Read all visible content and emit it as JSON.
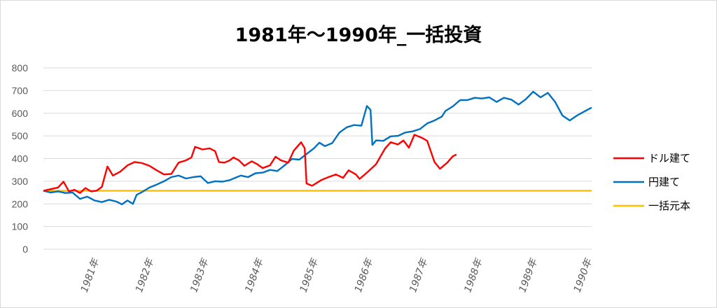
{
  "chart_data": {
    "type": "line",
    "title": "1981年～1990年_一括投資",
    "ylim": [
      0,
      800
    ],
    "y_ticks": [
      "0",
      "100",
      "200",
      "300",
      "400",
      "500",
      "600",
      "700",
      "800"
    ],
    "x": [
      "1981年",
      "1982年",
      "1983年",
      "1984年",
      "1985年",
      "1986年",
      "1987年",
      "1988年",
      "1989年",
      "1990年"
    ],
    "x_start": "1980年",
    "grid": true,
    "legend_position": "right",
    "series": [
      {
        "name": "ドル建て",
        "color": "#ff0000",
        "points": [
          [
            0,
            258
          ],
          [
            0.2,
            265
          ],
          [
            0.4,
            272
          ],
          [
            0.55,
            298
          ],
          [
            0.7,
            255
          ],
          [
            0.85,
            262
          ],
          [
            1.0,
            248
          ],
          [
            1.15,
            270
          ],
          [
            1.3,
            255
          ],
          [
            1.45,
            258
          ],
          [
            1.6,
            275
          ],
          [
            1.75,
            365
          ],
          [
            1.9,
            325
          ],
          [
            2.1,
            342
          ],
          [
            2.3,
            370
          ],
          [
            2.5,
            385
          ],
          [
            2.7,
            380
          ],
          [
            2.9,
            368
          ],
          [
            3.1,
            348
          ],
          [
            3.3,
            330
          ],
          [
            3.5,
            332
          ],
          [
            3.7,
            382
          ],
          [
            3.9,
            392
          ],
          [
            4.05,
            405
          ],
          [
            4.15,
            452
          ],
          [
            4.35,
            440
          ],
          [
            4.55,
            445
          ],
          [
            4.7,
            432
          ],
          [
            4.8,
            385
          ],
          [
            4.95,
            382
          ],
          [
            5.1,
            392
          ],
          [
            5.2,
            405
          ],
          [
            5.35,
            392
          ],
          [
            5.5,
            368
          ],
          [
            5.7,
            388
          ],
          [
            5.85,
            375
          ],
          [
            6.0,
            358
          ],
          [
            6.2,
            370
          ],
          [
            6.35,
            408
          ],
          [
            6.5,
            392
          ],
          [
            6.7,
            382
          ],
          [
            6.85,
            435
          ],
          [
            7.05,
            472
          ],
          [
            7.15,
            445
          ],
          [
            7.2,
            290
          ],
          [
            7.35,
            280
          ],
          [
            7.6,
            305
          ],
          [
            7.8,
            318
          ],
          [
            8.0,
            330
          ],
          [
            8.2,
            315
          ],
          [
            8.35,
            348
          ],
          [
            8.55,
            330
          ],
          [
            8.65,
            310
          ],
          [
            8.85,
            338
          ],
          [
            9.1,
            375
          ],
          [
            9.35,
            445
          ],
          [
            9.5,
            472
          ],
          [
            9.7,
            462
          ],
          [
            9.85,
            480
          ],
          [
            10.0,
            448
          ],
          [
            10.15,
            505
          ],
          [
            10.35,
            492
          ],
          [
            10.5,
            478
          ],
          [
            10.7,
            385
          ],
          [
            10.85,
            355
          ],
          [
            11.05,
            382
          ],
          [
            11.2,
            410
          ],
          [
            11.3,
            418
          ]
        ],
        "note": "x in years since 1980 start"
      },
      {
        "name": "円建て",
        "color": "#0070c0",
        "points": [
          [
            0,
            258
          ],
          [
            0.2,
            250
          ],
          [
            0.4,
            255
          ],
          [
            0.6,
            248
          ],
          [
            0.8,
            250
          ],
          [
            1.0,
            222
          ],
          [
            1.2,
            232
          ],
          [
            1.4,
            215
          ],
          [
            1.6,
            208
          ],
          [
            1.8,
            218
          ],
          [
            2.0,
            210
          ],
          [
            2.15,
            198
          ],
          [
            2.3,
            215
          ],
          [
            2.45,
            200
          ],
          [
            2.55,
            240
          ],
          [
            2.7,
            252
          ],
          [
            2.9,
            272
          ],
          [
            3.1,
            285
          ],
          [
            3.3,
            300
          ],
          [
            3.5,
            318
          ],
          [
            3.7,
            325
          ],
          [
            3.9,
            312
          ],
          [
            4.1,
            318
          ],
          [
            4.3,
            322
          ],
          [
            4.5,
            292
          ],
          [
            4.7,
            300
          ],
          [
            4.9,
            298
          ],
          [
            5.1,
            305
          ],
          [
            5.25,
            315
          ],
          [
            5.4,
            325
          ],
          [
            5.6,
            318
          ],
          [
            5.8,
            335
          ],
          [
            6.0,
            338
          ],
          [
            6.2,
            350
          ],
          [
            6.4,
            345
          ],
          [
            6.6,
            370
          ],
          [
            6.8,
            398
          ],
          [
            7.0,
            395
          ],
          [
            7.2,
            420
          ],
          [
            7.4,
            445
          ],
          [
            7.55,
            470
          ],
          [
            7.7,
            455
          ],
          [
            7.9,
            468
          ],
          [
            8.1,
            515
          ],
          [
            8.3,
            538
          ],
          [
            8.5,
            548
          ],
          [
            8.7,
            545
          ],
          [
            8.85,
            632
          ],
          [
            8.95,
            615
          ],
          [
            9.0,
            460
          ],
          [
            9.1,
            480
          ],
          [
            9.3,
            478
          ],
          [
            9.5,
            498
          ],
          [
            9.7,
            500
          ],
          [
            9.9,
            515
          ],
          [
            10.1,
            520
          ],
          [
            10.3,
            530
          ],
          [
            10.5,
            555
          ],
          [
            10.7,
            568
          ],
          [
            10.9,
            585
          ],
          [
            11.0,
            610
          ],
          [
            11.2,
            630
          ],
          [
            11.4,
            658
          ],
          [
            11.6,
            658
          ],
          [
            11.8,
            668
          ],
          [
            12.0,
            665
          ],
          [
            12.2,
            670
          ],
          [
            12.4,
            650
          ],
          [
            12.6,
            668
          ],
          [
            12.8,
            660
          ],
          [
            13.0,
            638
          ],
          [
            13.2,
            662
          ],
          [
            13.4,
            695
          ],
          [
            13.6,
            670
          ],
          [
            13.8,
            690
          ],
          [
            14.0,
            650
          ],
          [
            14.2,
            590
          ],
          [
            14.4,
            568
          ],
          [
            14.6,
            590
          ],
          [
            14.8,
            608
          ],
          [
            15.0,
            625
          ]
        ]
      },
      {
        "name": "一括元本",
        "color": "#ffc000",
        "points": [
          [
            0,
            258
          ],
          [
            15,
            258
          ]
        ]
      }
    ]
  }
}
